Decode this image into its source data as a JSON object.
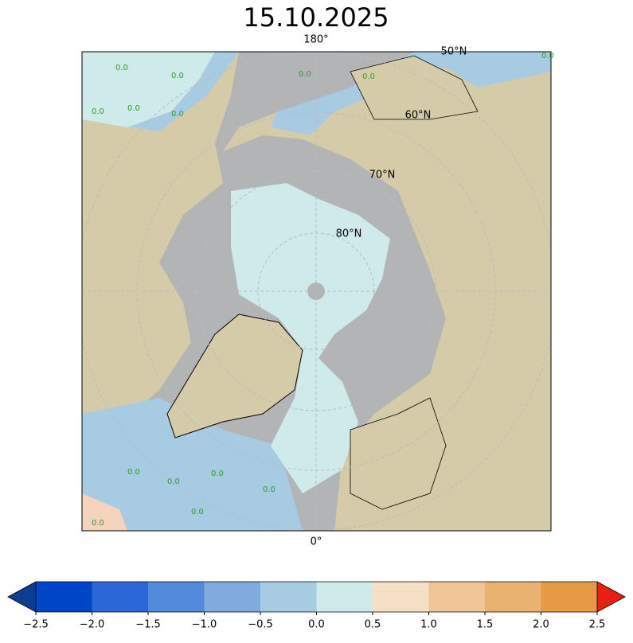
{
  "title": "15.10.2025",
  "map": {
    "meridian_labels": [
      "180°",
      "0°"
    ],
    "latitude_labels": [
      "50°N",
      "60°N",
      "70°N",
      "80°N"
    ],
    "contour_labels": [
      "0.0",
      "0.0",
      "0.0",
      "0.0",
      "0.0",
      "0.0",
      "0.0",
      "0.0",
      "0.0",
      "0.0",
      "0.0",
      "0.0",
      "0.0",
      "0.0"
    ]
  },
  "colorbar": {
    "bounds": [
      -2.5,
      -2,
      -1.5,
      -1,
      -0.5,
      0,
      0.5,
      1,
      1.5,
      2,
      2.5
    ],
    "colors": [
      "#0047c8",
      "#2b67d6",
      "#548adc",
      "#7fabde",
      "#a7cbe3",
      "#cfeaea",
      "#f5e0c6",
      "#f0c597",
      "#eab271",
      "#e69a43"
    ],
    "under_color": "#0b3d92",
    "over_color": "#e8200f",
    "ticks": [
      {
        "value": -2.5,
        "label": "−2.5"
      },
      {
        "value": -2,
        "label": "−2.0"
      },
      {
        "value": -1.5,
        "label": "−1.5"
      },
      {
        "value": -1,
        "label": "−1.0"
      },
      {
        "value": -0.5,
        "label": "−0.5"
      },
      {
        "value": 0,
        "label": "0.0"
      },
      0.5,
      {
        "value": 1,
        "label": "1.0"
      },
      1.5,
      {
        "value": 2,
        "label": "2.0"
      },
      2.5
    ]
  }
}
